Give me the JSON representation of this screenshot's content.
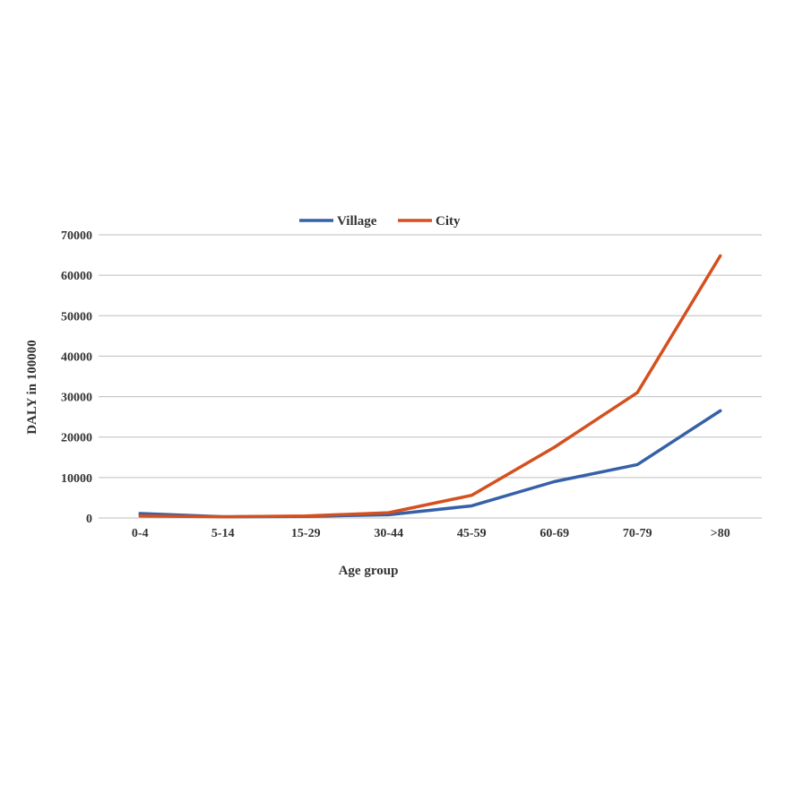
{
  "chart_data": {
    "type": "line",
    "title": "",
    "xlabel": "Age group",
    "ylabel": "DALY in 100000",
    "categories": [
      "0-4",
      "5-14",
      "15-29",
      "30-44",
      "45-59",
      "60-69",
      "70-79",
      ">80"
    ],
    "ylim": [
      0,
      70000
    ],
    "yticks": [
      0,
      10000,
      20000,
      30000,
      40000,
      50000,
      60000,
      70000
    ],
    "grid": true,
    "legend_position": "top",
    "series": [
      {
        "name": "Village",
        "color": "#3561a8",
        "values": [
          1100,
          300,
          400,
          800,
          3000,
          9000,
          13200,
          26500
        ]
      },
      {
        "name": "City",
        "color": "#d4501f",
        "values": [
          500,
          300,
          500,
          1300,
          5600,
          17500,
          31000,
          64800
        ]
      }
    ]
  }
}
